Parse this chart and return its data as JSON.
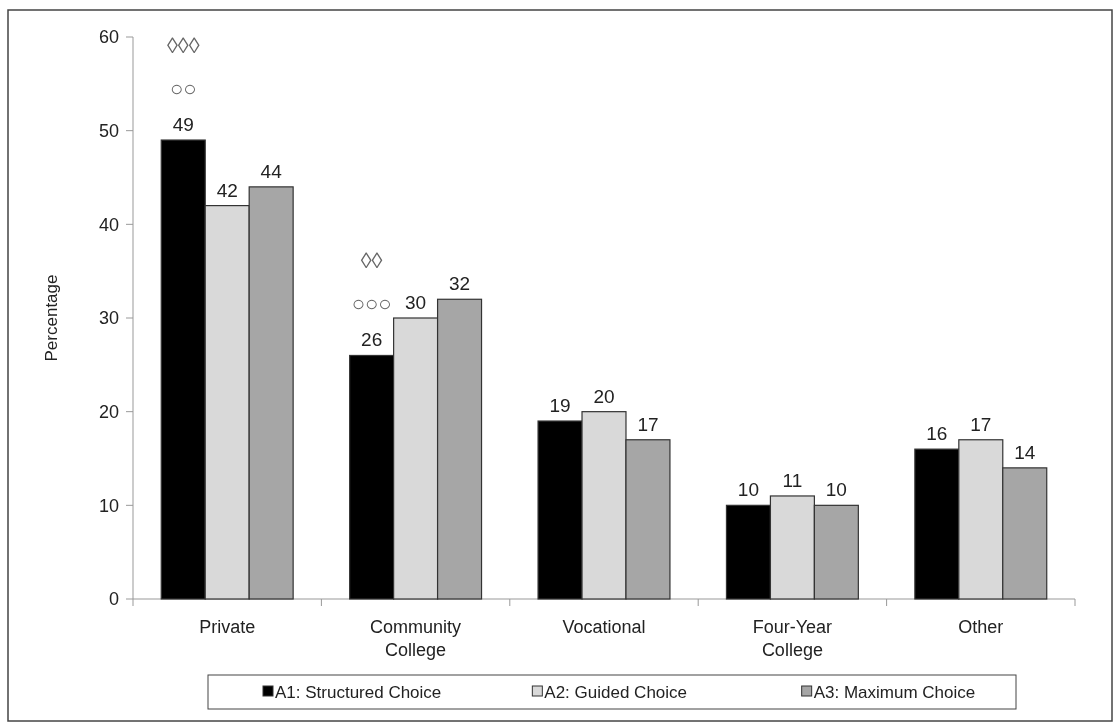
{
  "chart_data": {
    "type": "bar",
    "ylabel": "Percentage",
    "categories": [
      "Private",
      "Community College",
      "Vocational",
      "Four-Year College",
      "Other"
    ],
    "series": [
      {
        "name": "A1: Structured Choice",
        "color": "#000000",
        "values": [
          49,
          26,
          19,
          10,
          16
        ]
      },
      {
        "name": "A2: Guided Choice",
        "color": "#d9d9d9",
        "values": [
          42,
          30,
          20,
          11,
          17
        ]
      },
      {
        "name": "A3: Maximum Choice",
        "color": "#a6a6a6",
        "values": [
          44,
          32,
          17,
          10,
          14
        ]
      }
    ],
    "ylim": [
      0,
      60
    ],
    "yticks": [
      0,
      10,
      20,
      30,
      40,
      50,
      60
    ],
    "grid": false,
    "legend": "bottom",
    "data_labels": true,
    "annotations": [
      "○○",
      "◊◊◊",
      "○○○",
      "◊◊"
    ]
  }
}
